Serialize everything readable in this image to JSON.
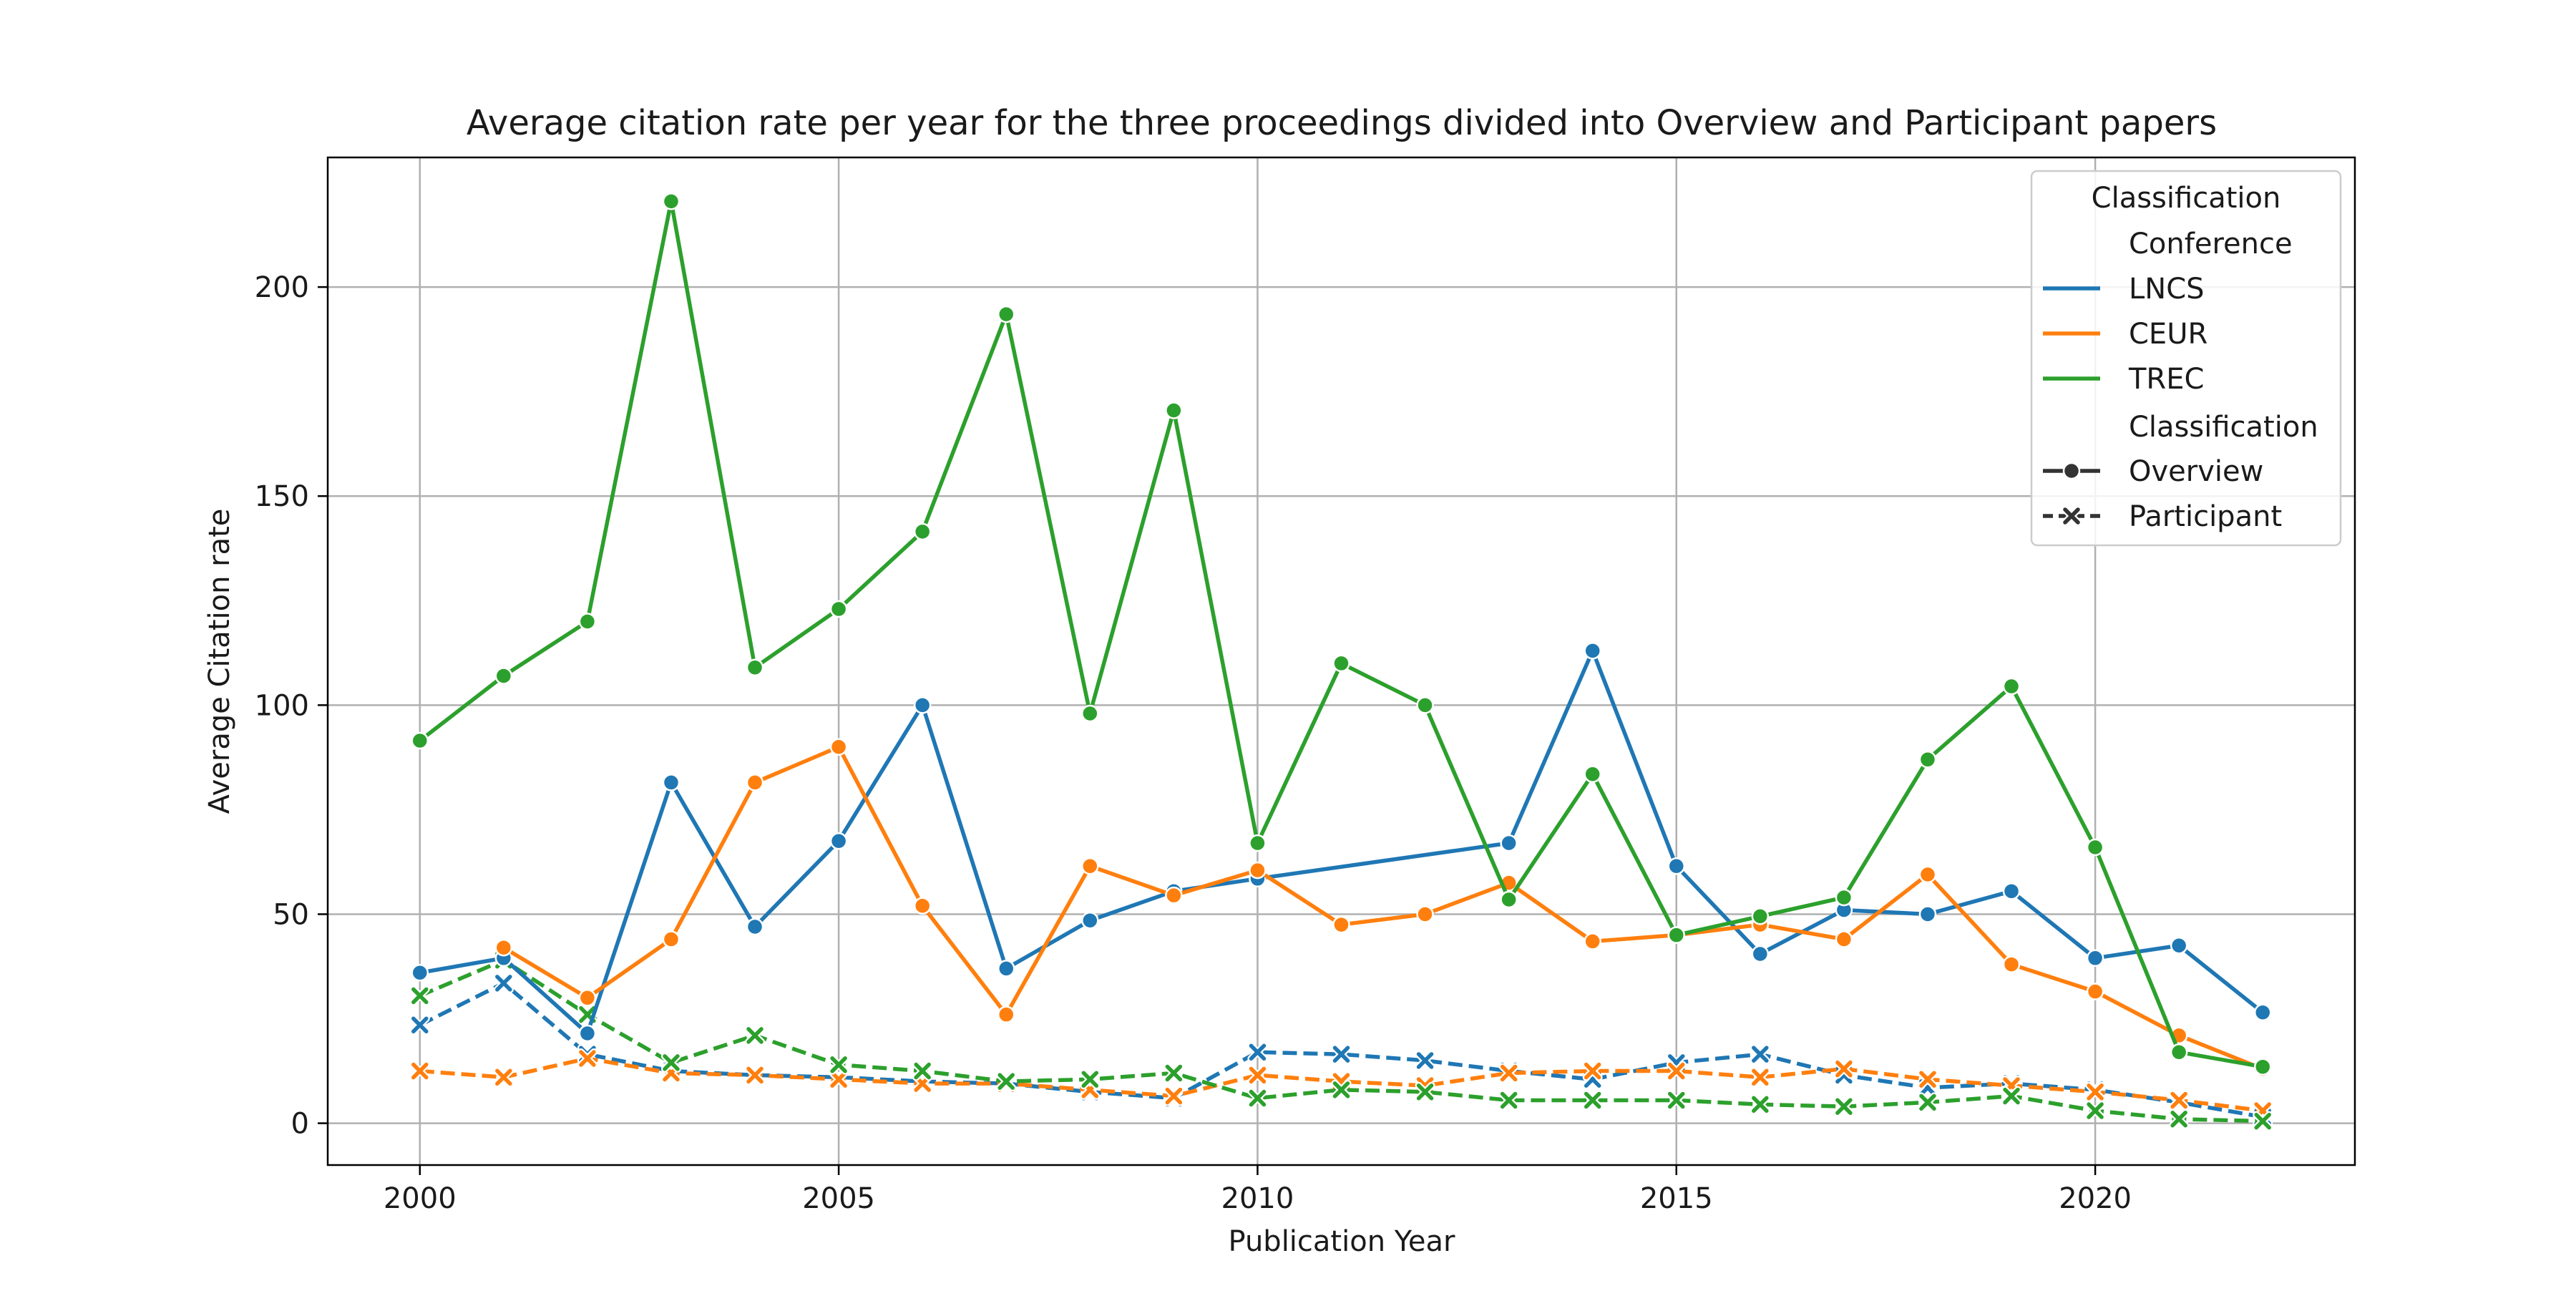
{
  "chart_data": {
    "type": "line",
    "title": "Average citation rate per year for the three proceedings divided into Overview and Participant papers",
    "xlabel": "Publication Year",
    "ylabel": "Average Citation rate",
    "xlim": [
      1998.9,
      2023.1
    ],
    "ylim": [
      -10,
      231
    ],
    "xticks": [
      2000,
      2005,
      2010,
      2015,
      2020
    ],
    "yticks": [
      0,
      50,
      100,
      150,
      200
    ],
    "grid": true,
    "legend_position": "top-right",
    "legend": {
      "title": "Classification",
      "hue_title": "Conference",
      "hue_entries": [
        "LNCS",
        "CEUR",
        "TREC"
      ],
      "style_title": "Classification",
      "style_entries": [
        "Overview",
        "Participant"
      ]
    },
    "colors": {
      "LNCS": "#1f77b4",
      "CEUR": "#ff7f0e",
      "TREC": "#2ca02c"
    },
    "series": [
      {
        "name": "LNCS",
        "classification": "Overview",
        "color": "#1f77b4",
        "marker": "circle",
        "dash": "solid",
        "x": [
          2000,
          2001,
          2002,
          2003,
          2004,
          2005,
          2006,
          2007,
          2008,
          2009,
          2010,
          2013,
          2014,
          2015,
          2016,
          2017,
          2018,
          2019,
          2020,
          2021,
          2022
        ],
        "y": [
          36,
          39.5,
          21.5,
          81.5,
          47,
          67.5,
          100,
          37,
          48.5,
          55.5,
          58.5,
          67,
          113,
          61.5,
          40.5,
          51,
          50,
          55.5,
          39.5,
          42.5,
          26.5
        ]
      },
      {
        "name": "LNCS",
        "classification": "Participant",
        "color": "#1f77b4",
        "marker": "x",
        "dash": "dashed",
        "x": [
          2000,
          2001,
          2002,
          2003,
          2004,
          2005,
          2006,
          2007,
          2008,
          2009,
          2010,
          2011,
          2012,
          2013,
          2014,
          2015,
          2016,
          2017,
          2018,
          2019,
          2020,
          2021,
          2022
        ],
        "y": [
          23.5,
          33.5,
          16.5,
          12.5,
          11.5,
          11,
          10,
          9.5,
          7.5,
          6,
          17,
          16.5,
          15,
          12.5,
          10.5,
          14.5,
          16.5,
          11.5,
          8.5,
          9.5,
          8,
          5,
          1.5
        ]
      },
      {
        "name": "CEUR",
        "classification": "Overview",
        "color": "#ff7f0e",
        "marker": "circle",
        "dash": "solid",
        "x": [
          2001,
          2002,
          2003,
          2004,
          2005,
          2006,
          2007,
          2008,
          2009,
          2010,
          2011,
          2012,
          2013,
          2014,
          2015,
          2016,
          2017,
          2018,
          2019,
          2020,
          2021,
          2022
        ],
        "y": [
          42,
          30,
          44,
          81.5,
          90,
          52,
          26,
          61.5,
          54.5,
          60.5,
          47.5,
          50,
          57.5,
          43.5,
          45,
          47.5,
          44,
          59.5,
          38,
          31.5,
          21,
          13
        ]
      },
      {
        "name": "CEUR",
        "classification": "Participant",
        "color": "#ff7f0e",
        "marker": "x",
        "dash": "dashed",
        "x": [
          2000,
          2001,
          2002,
          2003,
          2004,
          2005,
          2006,
          2007,
          2008,
          2009,
          2010,
          2011,
          2012,
          2013,
          2014,
          2015,
          2016,
          2017,
          2018,
          2019,
          2020,
          2021,
          2022
        ],
        "y": [
          12.5,
          11,
          15.5,
          12,
          11.5,
          10.5,
          9.5,
          9.5,
          8,
          6.5,
          11.5,
          10,
          9,
          12,
          12.5,
          12.5,
          11,
          13,
          10.5,
          9,
          7.5,
          5.5,
          3
        ]
      },
      {
        "name": "TREC",
        "classification": "Overview",
        "color": "#2ca02c",
        "marker": "circle",
        "dash": "solid",
        "x": [
          2000,
          2001,
          2002,
          2003,
          2004,
          2005,
          2006,
          2007,
          2008,
          2009,
          2010,
          2011,
          2012,
          2013,
          2014,
          2015,
          2016,
          2017,
          2018,
          2019,
          2020,
          2021,
          2022
        ],
        "y": [
          91.5,
          107,
          120,
          220.5,
          109,
          123,
          141.5,
          193.5,
          98,
          170.5,
          67,
          110,
          100,
          53.5,
          83.5,
          45,
          49.5,
          54,
          87,
          104.5,
          66,
          17,
          13.5
        ]
      },
      {
        "name": "TREC",
        "classification": "Participant",
        "color": "#2ca02c",
        "marker": "x",
        "dash": "dashed",
        "x": [
          2000,
          2001,
          2002,
          2003,
          2004,
          2005,
          2006,
          2007,
          2008,
          2009,
          2010,
          2011,
          2012,
          2013,
          2014,
          2015,
          2016,
          2017,
          2018,
          2019,
          2020,
          2021,
          2022
        ],
        "y": [
          30.5,
          39,
          26,
          14.5,
          21,
          14,
          12.5,
          10,
          10.5,
          12,
          6,
          8,
          7.5,
          5.5,
          5.5,
          5.5,
          4.5,
          4,
          5,
          6.5,
          3,
          1,
          0.5
        ]
      }
    ]
  }
}
